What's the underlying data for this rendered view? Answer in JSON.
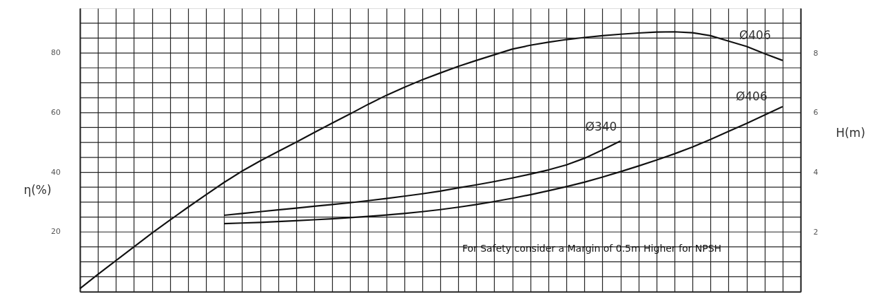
{
  "chart_data": {
    "type": "line",
    "ylabel": "η(%)",
    "y2label": "H(m)",
    "categories": [
      null,
      null,
      null,
      null,
      null,
      null,
      null,
      null,
      null,
      null,
      null,
      null,
      null,
      null,
      null,
      null,
      null,
      null,
      null,
      null,
      null,
      null,
      null,
      null,
      null,
      null,
      null,
      null,
      null,
      null,
      null,
      null,
      null,
      null,
      null,
      null,
      null,
      null,
      null,
      null,
      null
    ],
    "series": [
      {
        "name": "Ø406",
        "color": "#111111",
        "values": [
          1,
          5.8,
          10.4,
          15,
          19.6,
          24,
          28.3,
          32.5,
          36.6,
          40.4,
          43.8,
          47,
          50.1,
          53.3,
          56.5,
          59.6,
          62.8,
          65.8,
          68.5,
          71,
          73.3,
          75.5,
          77.5,
          79.4,
          81.3,
          82.6,
          83.6,
          84.5,
          85.2,
          85.8,
          86.3,
          86.7,
          87,
          87.1,
          86.8,
          85.8,
          84,
          82.2,
          79.8,
          77.5,
          null
        ]
      },
      {
        "name": "Ø340",
        "color": "#111111",
        "axis": "y2",
        "values": [
          null,
          null,
          null,
          null,
          null,
          null,
          null,
          null,
          2.56,
          2.62,
          2.68,
          2.74,
          2.8,
          2.86,
          2.92,
          2.98,
          3.05,
          3.12,
          3.2,
          3.28,
          3.37,
          3.48,
          3.58,
          3.69,
          3.81,
          3.94,
          4.08,
          4.25,
          4.47,
          4.75,
          5.05,
          null,
          null,
          null,
          null,
          null,
          null,
          null,
          null,
          null,
          null
        ]
      },
      {
        "name": "Ø406",
        "color": "#111111",
        "axis": "y2",
        "values": [
          null,
          null,
          null,
          null,
          null,
          null,
          null,
          null,
          2.28,
          2.3,
          2.32,
          2.35,
          2.38,
          2.41,
          2.44,
          2.48,
          2.52,
          2.57,
          2.62,
          2.68,
          2.75,
          2.83,
          2.92,
          3.02,
          3.13,
          3.25,
          3.38,
          3.52,
          3.67,
          3.84,
          4.02,
          4.21,
          4.41,
          4.62,
          4.85,
          5.1,
          5.37,
          5.64,
          5.92,
          6.2,
          null
        ]
      }
    ],
    "ylim": [
      0,
      95
    ],
    "yticks": [
      {
        "value": 5,
        "label": null
      },
      {
        "value": 10,
        "label": null
      },
      {
        "value": 15,
        "label": null
      },
      20,
      {
        "value": 25,
        "label": null
      },
      {
        "value": 30,
        "label": null
      },
      {
        "value": 35,
        "label": null
      },
      40,
      {
        "value": 45,
        "label": null
      },
      {
        "value": 50,
        "label": null
      },
      {
        "value": 55,
        "label": null
      },
      60,
      {
        "value": 65,
        "label": null
      },
      {
        "value": 70,
        "label": null
      },
      {
        "value": 75,
        "label": null
      },
      80,
      {
        "value": 85,
        "label": null
      },
      {
        "value": 90,
        "label": null
      }
    ],
    "y2lim": [
      0,
      9.5
    ],
    "y2ticks": [
      2,
      4,
      6,
      8
    ],
    "grid": true,
    "legend": false,
    "line_style": "solid",
    "marker": "none",
    "annotations": [
      "For Safety consider a Margin of 0.5m Higher for NPSH"
    ]
  }
}
